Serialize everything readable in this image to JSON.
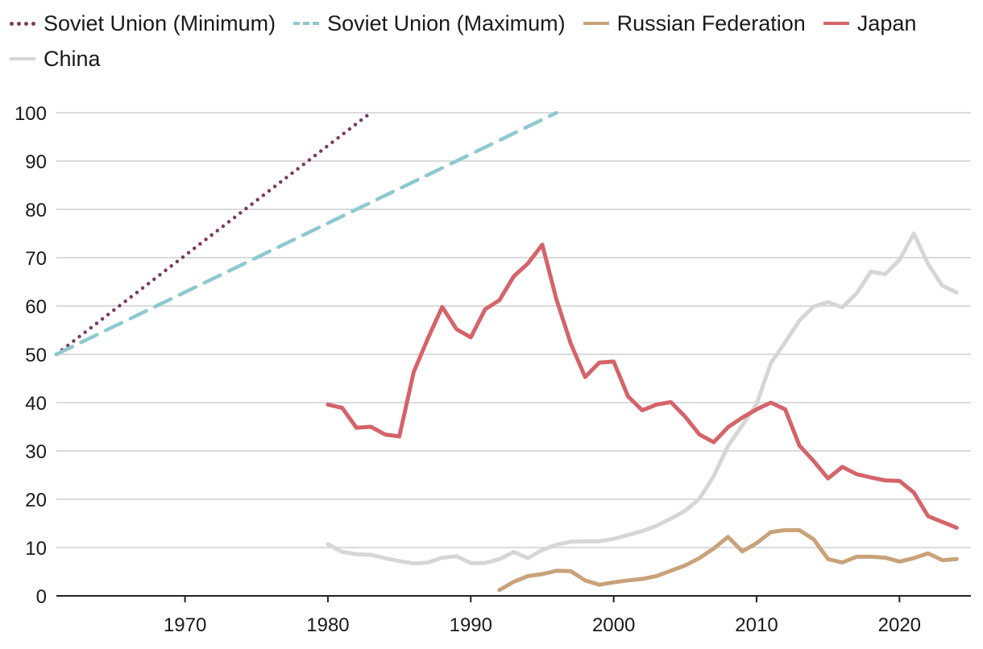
{
  "colors": {
    "soviet_min": "#7b3a63",
    "soviet_max": "#8ec8d0",
    "russia": "#c9a27a",
    "japan": "#d4646a",
    "china": "#d6d6d6",
    "grid": "#cfcfcf",
    "axis": "#222222"
  },
  "chart_data": {
    "type": "line",
    "xlim": [
      1961,
      2025
    ],
    "ylim": [
      0,
      100
    ],
    "xticks": [
      1970,
      1980,
      1990,
      2000,
      2010,
      2020
    ],
    "yticks": [
      0,
      10,
      20,
      30,
      40,
      50,
      60,
      70,
      80,
      90,
      100
    ],
    "grid": "horizontal",
    "legend_position": "top",
    "series": [
      {
        "name": "Soviet Union (Minimum)",
        "style": "dotted",
        "color": "#7b3a63",
        "x": [
          1961,
          1983
        ],
        "y": [
          50,
          100
        ]
      },
      {
        "name": "Soviet Union (Maximum)",
        "style": "dashed",
        "color": "#8ec8d0",
        "x": [
          1961,
          1996
        ],
        "y": [
          50,
          100
        ]
      },
      {
        "name": "Russian Federation",
        "style": "solid",
        "color": "#c9a27a",
        "x": [
          1992,
          1993,
          1994,
          1995,
          1996,
          1997,
          1998,
          1999,
          2000,
          2001,
          2002,
          2003,
          2004,
          2005,
          2006,
          2007,
          2008,
          2009,
          2010,
          2011,
          2012,
          2013,
          2014,
          2015,
          2016,
          2017,
          2018,
          2019,
          2020,
          2021,
          2022,
          2023,
          2024
        ],
        "y": [
          1.2,
          2.9,
          4.1,
          4.5,
          5.2,
          5.1,
          3.2,
          2.3,
          2.8,
          3.2,
          3.5,
          4.1,
          5.2,
          6.3,
          7.8,
          9.8,
          12.2,
          9.2,
          10.9,
          13.2,
          13.6,
          13.6,
          11.7,
          7.6,
          6.9,
          8.1,
          8.1,
          7.9,
          7.1,
          7.8,
          8.8,
          7.4,
          7.6
        ]
      },
      {
        "name": "Japan",
        "style": "solid",
        "color": "#d4646a",
        "x": [
          1980,
          1981,
          1982,
          1983,
          1984,
          1985,
          1986,
          1987,
          1988,
          1989,
          1990,
          1991,
          1992,
          1993,
          1994,
          1995,
          1996,
          1997,
          1998,
          1999,
          2000,
          2001,
          2002,
          2003,
          2004,
          2005,
          2006,
          2007,
          2008,
          2009,
          2010,
          2011,
          2012,
          2013,
          2014,
          2015,
          2016,
          2017,
          2018,
          2019,
          2020,
          2021,
          2022,
          2023,
          2024
        ],
        "y": [
          39.6,
          38.9,
          34.8,
          35.0,
          33.4,
          33.0,
          46.3,
          53.3,
          59.8,
          55.2,
          53.5,
          59.3,
          61.2,
          66.1,
          68.8,
          72.7,
          61.3,
          52.2,
          45.3,
          48.3,
          48.5,
          41.3,
          38.4,
          39.6,
          40.1,
          37.1,
          33.4,
          31.8,
          34.9,
          36.9,
          38.6,
          40.0,
          38.6,
          31.1,
          27.9,
          24.3,
          26.7,
          25.2,
          24.5,
          23.9,
          23.8,
          21.4,
          16.5,
          15.3,
          14.1
        ]
      },
      {
        "name": "China",
        "style": "solid",
        "color": "#d6d6d6",
        "x": [
          1980,
          1981,
          1982,
          1983,
          1984,
          1985,
          1986,
          1987,
          1988,
          1989,
          1990,
          1991,
          1992,
          1993,
          1994,
          1995,
          1996,
          1997,
          1998,
          1999,
          2000,
          2001,
          2002,
          2003,
          2004,
          2005,
          2006,
          2007,
          2008,
          2009,
          2010,
          2011,
          2012,
          2013,
          2014,
          2015,
          2016,
          2017,
          2018,
          2019,
          2020,
          2021,
          2022,
          2023,
          2024
        ],
        "y": [
          10.7,
          9.1,
          8.6,
          8.5,
          7.8,
          7.2,
          6.7,
          6.9,
          7.9,
          8.2,
          6.8,
          6.8,
          7.6,
          9.1,
          7.8,
          9.5,
          10.6,
          11.2,
          11.3,
          11.3,
          11.8,
          12.6,
          13.4,
          14.5,
          16.0,
          17.6,
          20.1,
          24.8,
          31.0,
          35.3,
          39.7,
          48.2,
          52.5,
          57.0,
          59.9,
          60.8,
          59.7,
          62.6,
          67.1,
          66.6,
          69.5,
          75.0,
          68.7,
          64.2,
          62.8
        ]
      }
    ]
  }
}
